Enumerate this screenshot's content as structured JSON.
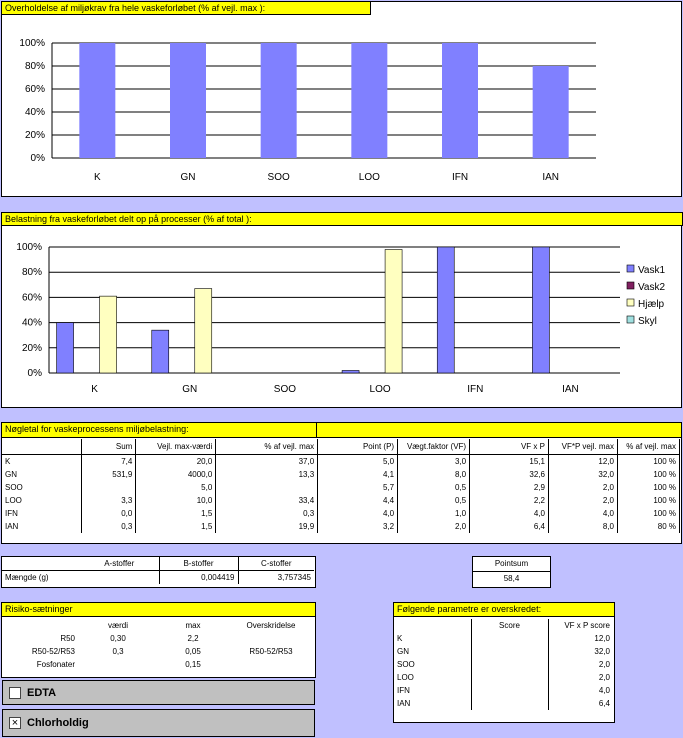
{
  "chart1": {
    "title": "Overholdelse af miljøkrav fra hele vaskeforløbet (% af vejl. max ):",
    "chart_data": {
      "type": "bar",
      "categories": [
        "K",
        "GN",
        "SOO",
        "LOO",
        "IFN",
        "IAN"
      ],
      "series": [
        {
          "values": [
            100,
            100,
            100,
            100,
            100,
            80
          ]
        }
      ],
      "ylim": [
        0,
        100
      ],
      "yticks": [
        "0%",
        "20%",
        "40%",
        "60%",
        "80%",
        "100%"
      ],
      "grid": true,
      "color": "#8080ff"
    }
  },
  "chart2": {
    "title": "Belastning fra vaskeforløbet delt op på processer (% af total ):",
    "chart_data": {
      "type": "bar",
      "categories": [
        "K",
        "GN",
        "SOO",
        "LOO",
        "IFN",
        "IAN"
      ],
      "series": [
        {
          "name": "Vask1",
          "color": "#8080ff",
          "values": [
            40,
            34,
            0,
            2,
            100,
            100
          ]
        },
        {
          "name": "Vask2",
          "color": "#802060",
          "values": [
            0,
            0,
            0,
            0,
            0,
            0
          ]
        },
        {
          "name": "Hjælp",
          "color": "#ffffc0",
          "values": [
            61,
            67,
            0,
            98,
            0,
            0
          ]
        },
        {
          "name": "Skyl",
          "color": "#a0e0e0",
          "values": [
            0,
            0,
            0,
            0,
            0,
            0
          ]
        }
      ],
      "ylim": [
        0,
        100
      ],
      "yticks": [
        "0%",
        "20%",
        "40%",
        "60%",
        "80%",
        "100%"
      ],
      "legend": "right",
      "grid": true
    }
  },
  "noegle": {
    "title": "Nøgletal for vaskeprocessens miljøbelastning:",
    "headers": [
      "",
      "Sum",
      "Vejl. max-værdi",
      "% af vejl. max",
      "Point (P)",
      "Vægt.faktor (VF)",
      "VF x P",
      "VF*P vejl. max",
      "% af vejl. max"
    ],
    "rows": [
      [
        "K",
        "7,4",
        "20,0",
        "37,0",
        "5,0",
        "3,0",
        "15,1",
        "12,0",
        "100 %"
      ],
      [
        "GN",
        "531,9",
        "4000,0",
        "13,3",
        "4,1",
        "8,0",
        "32,6",
        "32,0",
        "100 %"
      ],
      [
        "SOO",
        "",
        "5,0",
        "",
        "5,7",
        "0,5",
        "2,9",
        "2,0",
        "100 %"
      ],
      [
        "LOO",
        "3,3",
        "10,0",
        "33,4",
        "4,4",
        "0,5",
        "2,2",
        "2,0",
        "100 %"
      ],
      [
        "IFN",
        "0,0",
        "1,5",
        "0,3",
        "4,0",
        "1,0",
        "4,0",
        "4,0",
        "100 %"
      ],
      [
        "IAN",
        "0,3",
        "1,5",
        "19,9",
        "3,2",
        "2,0",
        "6,4",
        "8,0",
        "80 %"
      ]
    ]
  },
  "stoffer": {
    "headers": [
      "",
      "A-stoffer",
      "B-stoffer",
      "C-stoffer"
    ],
    "row": [
      "Mængde (g)",
      "",
      "0,004419",
      "3,757345"
    ]
  },
  "pointsum": {
    "label": "Pointsum",
    "value": "58,4"
  },
  "risiko": {
    "title": "Risiko-sætninger",
    "headers": [
      "",
      "værdi",
      "max",
      "Overskridelse"
    ],
    "rows": [
      [
        "R50",
        "0,30",
        "2,2",
        ""
      ],
      [
        "R50-52/R53",
        "0,3",
        "0,05",
        "R50-52/R53"
      ],
      [
        "Fosfonater",
        "",
        "0,15",
        ""
      ]
    ]
  },
  "checkboxes": [
    {
      "label": "EDTA",
      "checked": false,
      "mark": ""
    },
    {
      "label": "Chlorholdig",
      "checked": true,
      "mark": "×"
    }
  ],
  "param": {
    "title": "Følgende parametre er overskredet:",
    "headers": [
      "",
      "Score",
      "VF x P score"
    ],
    "rows": [
      [
        "K",
        "",
        "12,0"
      ],
      [
        "GN",
        "",
        "32,0"
      ],
      [
        "SOO",
        "",
        "2,0"
      ],
      [
        "LOO",
        "",
        "2,0"
      ],
      [
        "IFN",
        "",
        "4,0"
      ],
      [
        "IAN",
        "",
        "6,4"
      ]
    ]
  }
}
